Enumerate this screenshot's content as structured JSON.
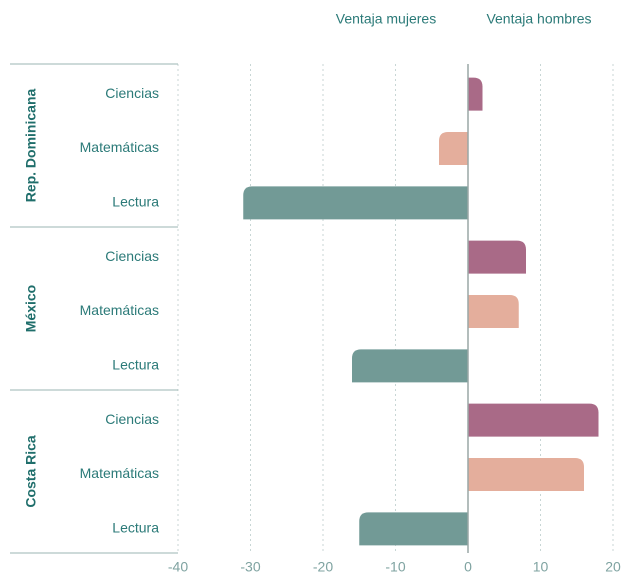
{
  "chart_data": {
    "type": "grouped-diverging-bar",
    "annotations": [
      "Ventaja mujeres",
      "Ventaja hombres"
    ],
    "categories": [
      "Rep. Dominicana",
      "México",
      "Costa Rica"
    ],
    "series": [
      {
        "name": "Ciencias",
        "color": "#a96a87",
        "values": [
          2,
          8,
          18
        ]
      },
      {
        "name": "Matemáticas",
        "color": "#e4ae9c",
        "values": [
          -4,
          7,
          16
        ]
      },
      {
        "name": "Lectura",
        "color": "#729a96",
        "values": [
          -31,
          -16,
          -15
        ]
      }
    ],
    "xlim": [
      -40,
      20
    ],
    "xticks": [
      -40,
      -30,
      -20,
      -10,
      0,
      10,
      20
    ],
    "grid": true
  }
}
